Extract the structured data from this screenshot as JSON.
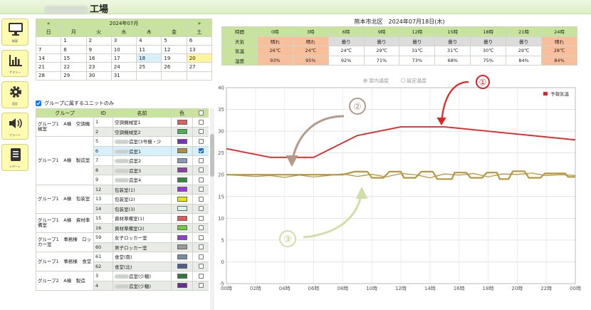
{
  "header": {
    "title_suffix": "工場"
  },
  "sidebar": {
    "buttons": [
      {
        "label": "概要",
        "icon": "monitor-icon"
      },
      {
        "label": "サマリー",
        "icon": "bar-chart-icon"
      },
      {
        "label": "設定",
        "icon": "gear-icon"
      },
      {
        "label": "アラート",
        "icon": "speaker-icon"
      },
      {
        "label": "レポート",
        "icon": "document-icon"
      }
    ]
  },
  "calendar": {
    "prev": "«",
    "next": "»",
    "month": "2024年07月",
    "weekdays": [
      "日",
      "月",
      "火",
      "水",
      "木",
      "金",
      "土"
    ],
    "weeks": [
      [
        "",
        "1",
        "2",
        "3",
        "4",
        "5",
        "6"
      ],
      [
        "7",
        "8",
        "9",
        "10",
        "11",
        "12",
        "13"
      ],
      [
        "14",
        "15",
        "16",
        "17",
        "18",
        "19",
        "20"
      ],
      [
        "21",
        "22",
        "23",
        "24",
        "25",
        "26",
        "27"
      ],
      [
        "28",
        "29",
        "30",
        "31",
        "",
        "",
        ""
      ]
    ]
  },
  "filter": {
    "group_only_label": "グループに属するユニットのみ",
    "checked": true
  },
  "units": {
    "headers": [
      "グループ",
      "ID",
      "名前",
      "色",
      ""
    ],
    "rows": [
      {
        "group": "グループ1　A棟　空調機械室",
        "span": 2,
        "id": "1",
        "name": "空調機械室1",
        "color": "#e06060",
        "checked": false
      },
      {
        "id": "2",
        "name": "空調機械室2",
        "color": "#4caf50",
        "checked": false
      },
      {
        "group": "グループ1　A棟　製造室",
        "span": 5,
        "id": "5",
        "name": "製造室(3号機・少",
        "blur": true,
        "color": "#7b2fbe",
        "checked": false
      },
      {
        "id": "6",
        "name": "製造室1",
        "blur": true,
        "color": "#b08f3c",
        "checked": true
      },
      {
        "id": "7",
        "name": "製造室2",
        "blur": true,
        "color": "#8a9bb8",
        "checked": false
      },
      {
        "id": "8",
        "name": "製造室3",
        "blur": true,
        "color": "#8e3fa6",
        "checked": false
      },
      {
        "id": "9",
        "name": "製造室4",
        "blur": true,
        "color": "#2f8a3a",
        "checked": false
      },
      {
        "group": "グループ1　A棟　包装室",
        "span": 3,
        "id": "12",
        "name": "包装室(1)",
        "color": "#9b35e0",
        "checked": false
      },
      {
        "id": "13",
        "name": "包装室(2)",
        "color": "#f2e600",
        "checked": false
      },
      {
        "id": "14",
        "name": "包装室(3)",
        "color": "#d8f7f0",
        "checked": false
      },
      {
        "group": "グループ1　A棟　資材準備室",
        "span": 2,
        "id": "15",
        "name": "資材準備室(1)",
        "color": "#e85a5a",
        "checked": false
      },
      {
        "id": "16",
        "name": "資材準備室(2)",
        "color": "#6fcf3a",
        "checked": false
      },
      {
        "group": "グループ1　事務棟　ロッカー室",
        "span": 2,
        "id": "59",
        "name": "女子ロッカー室",
        "color": "#8d3fd0",
        "checked": false
      },
      {
        "id": "60",
        "name": "男子ロッカー室",
        "color": "#9a9a9a",
        "checked": false
      },
      {
        "group": "グループ1　事務棟　食堂",
        "span": 2,
        "id": "61",
        "name": "食堂(南)",
        "color": "#7a8da8",
        "checked": false
      },
      {
        "id": "62",
        "name": "食堂(北)",
        "color": "#4c5f8a",
        "checked": false
      },
      {
        "group": "グループ2　A棟　製造",
        "span": 2,
        "id": "3",
        "name": "製造室(少糖)",
        "blur": true,
        "color": "#2d7a3a",
        "checked": false
      },
      {
        "id": "4",
        "name": "製造室(少糖)",
        "blur": true,
        "color": "#6a2c9a",
        "checked": false
      }
    ]
  },
  "weather": {
    "title": "熊本市北区　2024年07月18日(木)",
    "hours": [
      "時間",
      "0時",
      "3時",
      "6時",
      "9時",
      "12時",
      "15時",
      "18時",
      "21時",
      "24時"
    ],
    "rows": [
      {
        "label": "天気",
        "cells": [
          "晴れ",
          "晴れ",
          "曇り",
          "曇り",
          "曇り",
          "曇り",
          "曇り",
          "曇り",
          "晴れ"
        ]
      },
      {
        "label": "気温",
        "cells": [
          "26℃",
          "24℃",
          "24℃",
          "29℃",
          "31℃",
          "31℃",
          "30℃",
          "29℃",
          "28℃"
        ]
      },
      {
        "label": "湿度",
        "cells": [
          "93%",
          "95%",
          "92%",
          "71%",
          "73%",
          "68%",
          "75%",
          "84%",
          "84%"
        ]
      }
    ]
  },
  "chart_data": {
    "type": "line",
    "legend_top": [
      "室内温度",
      "設定温度"
    ],
    "legend_right": "予報気温",
    "ylim": [
      -5,
      40
    ],
    "yticks": [
      -5,
      0,
      5,
      10,
      15,
      20,
      25,
      30,
      35,
      40
    ],
    "xticks": [
      "00時",
      "02時",
      "04時",
      "06時",
      "08時",
      "10時",
      "12時",
      "14時",
      "16時",
      "18時",
      "20時",
      "22時",
      "00時"
    ],
    "grid": true,
    "series": [
      {
        "name": "予報気温",
        "color": "#e52222",
        "points": [
          [
            0,
            26
          ],
          [
            3,
            24
          ],
          [
            6,
            24
          ],
          [
            9,
            29
          ],
          [
            12,
            31
          ],
          [
            15,
            31
          ],
          [
            18,
            30
          ],
          [
            21,
            29
          ],
          [
            24,
            28
          ]
        ]
      },
      {
        "color": "#b8963a",
        "points": [
          [
            0,
            20
          ],
          [
            1,
            19.8
          ],
          [
            2,
            19.6
          ],
          [
            3,
            19.8
          ],
          [
            4,
            19.4
          ],
          [
            5,
            19.9
          ],
          [
            6,
            19.5
          ],
          [
            7,
            19.8
          ],
          [
            8,
            20.2
          ],
          [
            9,
            19.6
          ],
          [
            10,
            20.1
          ],
          [
            11,
            19.5
          ],
          [
            12,
            20.3
          ],
          [
            13,
            20.0
          ],
          [
            14,
            19.3
          ],
          [
            15,
            20.2
          ],
          [
            16,
            19.9
          ],
          [
            17,
            20.3
          ],
          [
            18,
            19.5
          ],
          [
            19,
            20.2
          ],
          [
            20,
            20.1
          ],
          [
            21,
            20.4
          ],
          [
            22,
            19.8
          ],
          [
            23,
            20.0
          ],
          [
            24,
            19.8
          ]
        ]
      },
      {
        "color": "#b8963a",
        "points": [
          [
            0,
            20
          ],
          [
            8,
            20
          ],
          [
            8.8,
            20.7
          ],
          [
            9.7,
            20.7
          ],
          [
            10.0,
            19.3
          ],
          [
            10.8,
            19.3
          ],
          [
            11.2,
            20.7
          ],
          [
            12.0,
            20.7
          ],
          [
            12.2,
            19.3
          ],
          [
            13.0,
            19.3
          ],
          [
            13.4,
            20.7
          ],
          [
            14.2,
            20.7
          ],
          [
            14.5,
            19.0
          ],
          [
            15.5,
            19.0
          ],
          [
            15.7,
            20.5
          ],
          [
            16.5,
            20.5
          ],
          [
            16.8,
            19.3
          ],
          [
            17.6,
            19.3
          ],
          [
            17.9,
            20.5
          ],
          [
            18.6,
            20.5
          ],
          [
            18.8,
            19.0
          ],
          [
            19.4,
            19.0
          ],
          [
            19.7,
            20.8
          ],
          [
            20.5,
            20.8
          ],
          [
            20.8,
            19.3
          ],
          [
            21.6,
            19.3
          ],
          [
            21.9,
            20.3
          ],
          [
            23.3,
            20.3
          ],
          [
            23.5,
            19.5
          ],
          [
            24,
            19.5
          ]
        ]
      }
    ],
    "annotations": [
      "①",
      "②",
      "③"
    ]
  }
}
